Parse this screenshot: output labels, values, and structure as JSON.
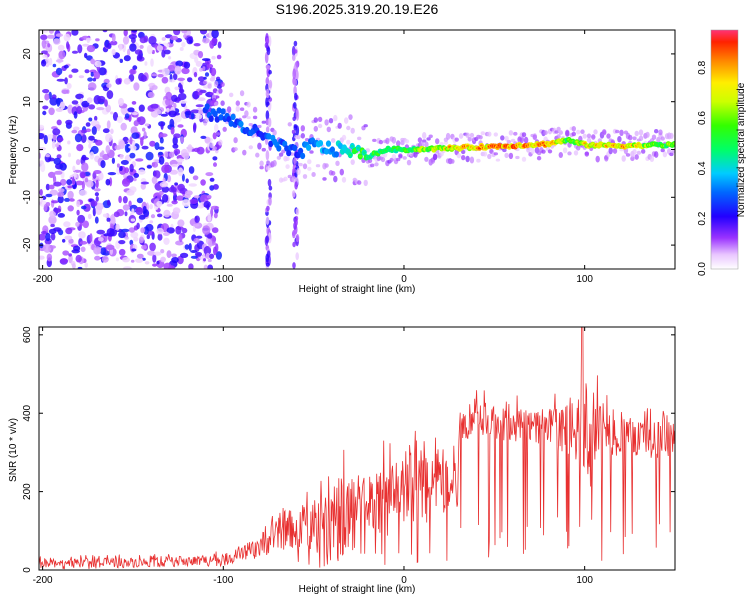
{
  "title": "S196.2025.319.20.19.E26",
  "chart_data": [
    {
      "type": "heatmap",
      "title": "S196.2025.319.20.19.E26",
      "xlabel": "Height of straight line (km)",
      "ylabel": "Frequency (Hz)",
      "xlim": [
        -202,
        150
      ],
      "ylim": [
        -25,
        25
      ],
      "xticks": [
        -200,
        -100,
        0,
        100
      ],
      "yticks": [
        -20,
        -10,
        0,
        10,
        20
      ],
      "colorbar": {
        "label": "Normalized spectral amplitude",
        "range": [
          0.0,
          0.95
        ],
        "ticks": [
          0.0,
          0.2,
          0.4,
          0.6,
          0.8
        ]
      },
      "ridge": {
        "x": [
          -110,
          -100,
          -90,
          -80,
          -70,
          -60,
          -50,
          -40,
          -30,
          -20,
          -10,
          0,
          20,
          40,
          60,
          80,
          90,
          100,
          120,
          150
        ],
        "freq": [
          8,
          7,
          5,
          3,
          1,
          -1,
          1,
          0,
          0,
          -1.5,
          0,
          0,
          0.2,
          0.5,
          0.8,
          1.2,
          2,
          1,
          0.8,
          1
        ],
        "amplitude": [
          0.3,
          0.3,
          0.35,
          0.3,
          0.35,
          0.3,
          0.4,
          0.4,
          0.5,
          0.6,
          0.55,
          0.6,
          0.75,
          0.85,
          0.9,
          0.85,
          0.6,
          0.75,
          0.8,
          0.6
        ]
      }
    },
    {
      "type": "line",
      "xlabel": "Height of straight line (km)",
      "ylabel": "SNR (10 * v/v)",
      "xlim": [
        -202,
        150
      ],
      "ylim": [
        0,
        620
      ],
      "xticks": [
        -200,
        -100,
        0,
        100
      ],
      "yticks": [
        0,
        200,
        400,
        600
      ],
      "series": [
        {
          "name": "SNR",
          "color": "#e83030",
          "x": [
            -202,
            -180,
            -160,
            -140,
            -120,
            -100,
            -90,
            -80,
            -70,
            -60,
            -50,
            -40,
            -30,
            -20,
            -10,
            0,
            10,
            20,
            30,
            31,
            40,
            50,
            60,
            70,
            80,
            90,
            95,
            100,
            110,
            120,
            130,
            140,
            150
          ],
          "base": [
            15,
            15,
            18,
            20,
            22,
            25,
            40,
            60,
            90,
            110,
            120,
            130,
            140,
            170,
            180,
            200,
            220,
            200,
            210,
            370,
            380,
            375,
            370,
            365,
            360,
            360,
            355,
            330,
            350,
            345,
            340,
            330,
            335
          ],
          "peak": [
            35,
            38,
            40,
            40,
            45,
            50,
            70,
            110,
            160,
            200,
            250,
            290,
            330,
            280,
            340,
            330,
            390,
            320,
            340,
            430,
            460,
            460,
            450,
            440,
            450,
            460,
            480,
            620,
            460,
            440,
            420,
            410,
            430
          ]
        }
      ]
    }
  ]
}
